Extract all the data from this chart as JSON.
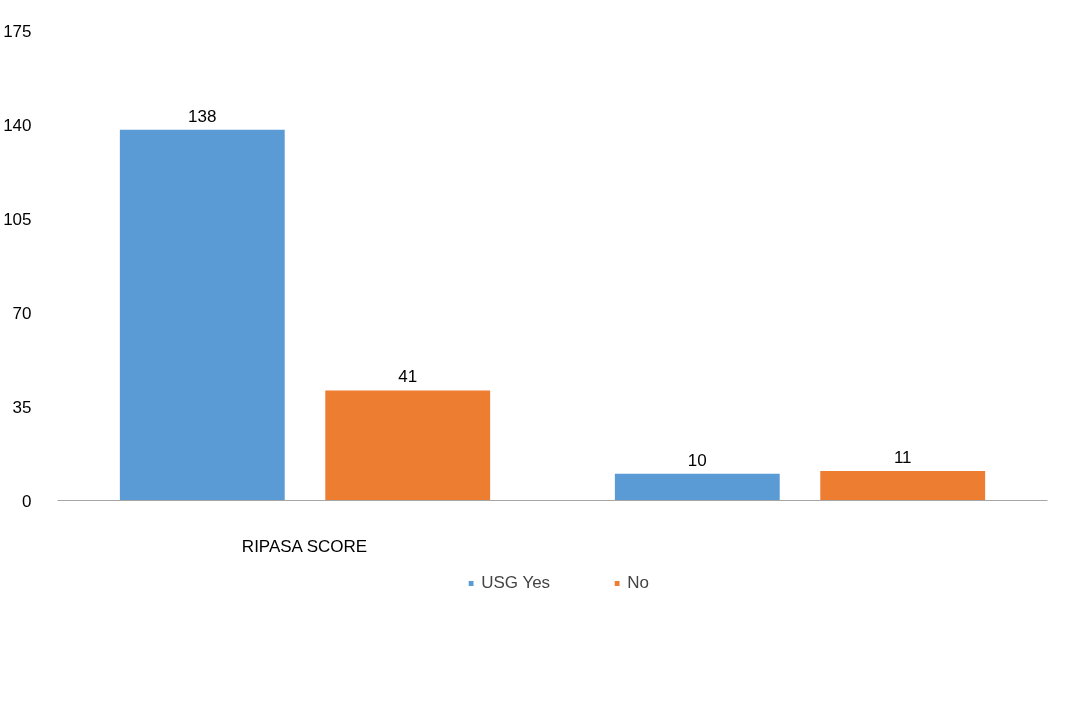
{
  "chart_data": {
    "type": "bar",
    "categories": [
      "RIPASA SCORE",
      null
    ],
    "series": [
      {
        "name": "USG Yes",
        "color": "#5b9bd5",
        "values": [
          138,
          10
        ]
      },
      {
        "name": "No",
        "color": "#ed7d31",
        "values": [
          41,
          11
        ]
      }
    ],
    "ylim": [
      0,
      175
    ],
    "yticks": [
      0,
      35,
      70,
      105,
      140,
      175
    ],
    "grid": false,
    "legend": "bottom",
    "data_labels": true
  }
}
